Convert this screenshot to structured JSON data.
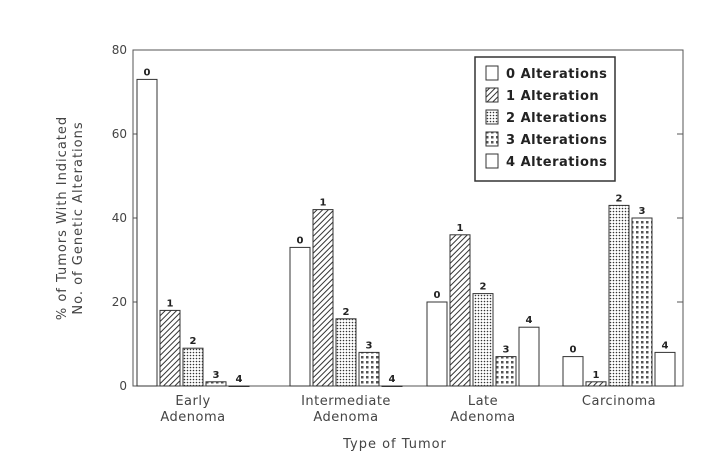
{
  "chart_data": {
    "type": "bar",
    "xlabel": "Type of Tumor",
    "ylabel_lines": [
      "% of Tumors With Indicated",
      "No. of Genetic Alterations"
    ],
    "ylim": [
      0,
      80
    ],
    "yticks": [
      "0",
      "20",
      "40",
      "60",
      "80"
    ],
    "categories": [
      [
        "Early",
        "Adenoma"
      ],
      [
        "Intermediate",
        "Adenoma"
      ],
      [
        "Late",
        "Adenoma"
      ],
      [
        "Carcinoma"
      ]
    ],
    "legend_position": "top-right",
    "grid": false,
    "series": [
      {
        "name": "0 Alterations",
        "bar_label": "0",
        "pattern": "none",
        "values": [
          73,
          33,
          20,
          7
        ]
      },
      {
        "name": "1 Alteration",
        "bar_label": "1",
        "pattern": "diag",
        "values": [
          18,
          42,
          36,
          1
        ]
      },
      {
        "name": "2 Alterations",
        "bar_label": "2",
        "pattern": "dots",
        "values": [
          9,
          16,
          22,
          43
        ]
      },
      {
        "name": "3 Alterations",
        "bar_label": "3",
        "pattern": "squares",
        "values": [
          1,
          8,
          7,
          40
        ]
      },
      {
        "name": "4 Alterations",
        "bar_label": "4",
        "pattern": "none",
        "values": [
          0,
          0,
          14,
          8
        ]
      }
    ]
  }
}
